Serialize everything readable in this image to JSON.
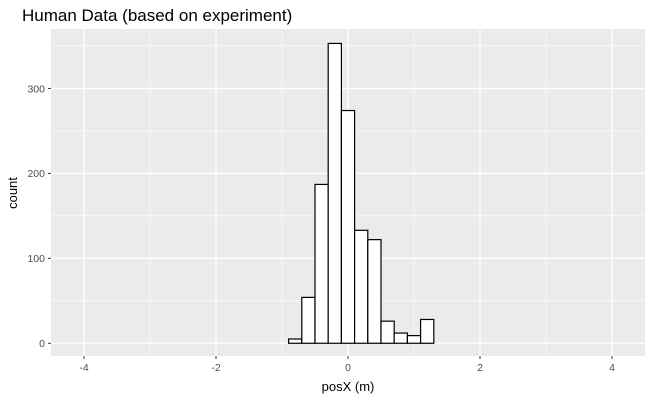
{
  "chart_data": {
    "type": "bar",
    "subtype": "histogram",
    "title": "Human Data (based on experiment)",
    "xlabel": "posX (m)",
    "ylabel": "count",
    "xlim": [
      -4.5,
      4.5
    ],
    "ylim": [
      -15,
      370
    ],
    "x_ticks": [
      -4,
      -2,
      0,
      2,
      4
    ],
    "x_tick_labels": [
      "-4",
      "-2",
      "0",
      "2",
      "4"
    ],
    "y_ticks": [
      0,
      100,
      200,
      300
    ],
    "y_tick_labels": [
      "0",
      "100",
      "200",
      "300"
    ],
    "x_minor_gridlines": [
      -3,
      -1,
      1,
      3
    ],
    "y_minor_gridlines": [
      50,
      150,
      250,
      350
    ],
    "grid": true,
    "background_color": "#ebebeb",
    "gridline_color": "#ffffff",
    "bar_fill": "#ffffff",
    "bar_outline": "#000000",
    "bins": [
      {
        "x0": -0.9,
        "x1": -0.7,
        "count": 5
      },
      {
        "x0": -0.7,
        "x1": -0.5,
        "count": 54
      },
      {
        "x0": -0.5,
        "x1": -0.3,
        "count": 187
      },
      {
        "x0": -0.3,
        "x1": -0.1,
        "count": 353
      },
      {
        "x0": -0.1,
        "x1": 0.1,
        "count": 274
      },
      {
        "x0": 0.1,
        "x1": 0.3,
        "count": 133
      },
      {
        "x0": 0.3,
        "x1": 0.5,
        "count": 122
      },
      {
        "x0": 0.5,
        "x1": 0.7,
        "count": 26
      },
      {
        "x0": 0.7,
        "x1": 0.9,
        "count": 12
      },
      {
        "x0": 0.9,
        "x1": 1.1,
        "count": 9
      },
      {
        "x0": 1.1,
        "x1": 1.3,
        "count": 28
      }
    ]
  }
}
